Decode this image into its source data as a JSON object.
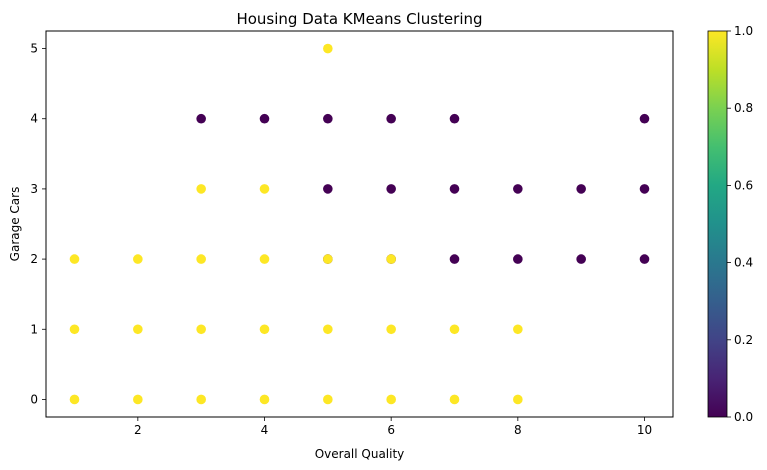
{
  "chart_data": {
    "type": "scatter",
    "title": "Housing Data KMeans Clustering",
    "xlabel": "Overall Quality",
    "ylabel": "Garage Cars",
    "xlim": [
      0.55,
      10.45
    ],
    "ylim": [
      -0.25,
      5.25
    ],
    "xticks": [
      2,
      4,
      6,
      8,
      10
    ],
    "yticks": [
      0,
      1,
      2,
      3,
      4,
      5
    ],
    "grid": false,
    "colormap": "viridis",
    "colorbar": {
      "ticks": [
        "0.0",
        "0.2",
        "0.4",
        "0.6",
        "0.8",
        "1.0"
      ],
      "range": [
        0,
        1
      ]
    },
    "cluster_colors": {
      "0": "#440154",
      "1": "#fde725"
    },
    "points": [
      {
        "x": 1,
        "y": 0,
        "cluster": 1
      },
      {
        "x": 1,
        "y": 1,
        "cluster": 1
      },
      {
        "x": 1,
        "y": 2,
        "cluster": 1
      },
      {
        "x": 2,
        "y": 0,
        "cluster": 1
      },
      {
        "x": 2,
        "y": 1,
        "cluster": 1
      },
      {
        "x": 2,
        "y": 2,
        "cluster": 1
      },
      {
        "x": 3,
        "y": 0,
        "cluster": 1
      },
      {
        "x": 3,
        "y": 1,
        "cluster": 1
      },
      {
        "x": 3,
        "y": 2,
        "cluster": 1
      },
      {
        "x": 3,
        "y": 3,
        "cluster": 1
      },
      {
        "x": 3,
        "y": 4,
        "cluster": 0
      },
      {
        "x": 4,
        "y": 0,
        "cluster": 1
      },
      {
        "x": 4,
        "y": 1,
        "cluster": 1
      },
      {
        "x": 4,
        "y": 2,
        "cluster": 1
      },
      {
        "x": 4,
        "y": 3,
        "cluster": 1
      },
      {
        "x": 4,
        "y": 4,
        "cluster": 0
      },
      {
        "x": 5,
        "y": 0,
        "cluster": 1
      },
      {
        "x": 5,
        "y": 1,
        "cluster": 1
      },
      {
        "x": 5,
        "y": 2,
        "cluster": 0
      },
      {
        "x": 5,
        "y": 2,
        "cluster": 1
      },
      {
        "x": 5,
        "y": 3,
        "cluster": 0
      },
      {
        "x": 5,
        "y": 4,
        "cluster": 0
      },
      {
        "x": 5,
        "y": 5,
        "cluster": 1
      },
      {
        "x": 6,
        "y": 0,
        "cluster": 1
      },
      {
        "x": 6,
        "y": 1,
        "cluster": 1
      },
      {
        "x": 6,
        "y": 2,
        "cluster": 0
      },
      {
        "x": 6,
        "y": 2,
        "cluster": 1
      },
      {
        "x": 6,
        "y": 3,
        "cluster": 0
      },
      {
        "x": 6,
        "y": 4,
        "cluster": 0
      },
      {
        "x": 7,
        "y": 0,
        "cluster": 1
      },
      {
        "x": 7,
        "y": 1,
        "cluster": 1
      },
      {
        "x": 7,
        "y": 2,
        "cluster": 0
      },
      {
        "x": 7,
        "y": 3,
        "cluster": 0
      },
      {
        "x": 7,
        "y": 4,
        "cluster": 0
      },
      {
        "x": 8,
        "y": 0,
        "cluster": 1
      },
      {
        "x": 8,
        "y": 1,
        "cluster": 1
      },
      {
        "x": 8,
        "y": 2,
        "cluster": 0
      },
      {
        "x": 8,
        "y": 3,
        "cluster": 0
      },
      {
        "x": 9,
        "y": 2,
        "cluster": 0
      },
      {
        "x": 9,
        "y": 3,
        "cluster": 0
      },
      {
        "x": 10,
        "y": 2,
        "cluster": 0
      },
      {
        "x": 10,
        "y": 3,
        "cluster": 0
      },
      {
        "x": 10,
        "y": 4,
        "cluster": 0
      }
    ]
  }
}
